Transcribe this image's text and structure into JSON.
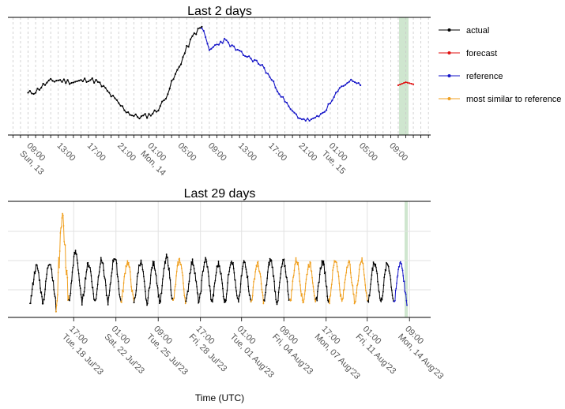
{
  "chart_data": [
    {
      "type": "line",
      "title": "Last 2 days",
      "x_tick_labels": [
        "09:00|Sun, 13",
        "13:00",
        "17:00",
        "21:00",
        "01:00|Mon, 14",
        "05:00",
        "09:00",
        "13:00",
        "17:00",
        "21:00",
        "01:00|Tue, 15",
        "05:00",
        "09:00"
      ],
      "legend": [
        "actual",
        "forecast",
        "reference",
        "most similar to reference"
      ],
      "legend_position": "right",
      "grid": "vertical dashed, hourly",
      "highlight": "shaded band at the latest hour (09:00 Tue, 15)",
      "series": [
        {
          "name": "actual",
          "color": "#000000",
          "values_by_hour": [
            0.32,
            0.34,
            0.4,
            0.44,
            0.45,
            0.44,
            0.43,
            0.44,
            0.46,
            0.44,
            0.38,
            0.3,
            0.22,
            0.15,
            0.1,
            0.09,
            0.11,
            0.15,
            0.25,
            0.42,
            0.58,
            0.76,
            0.9,
            0.97
          ]
        },
        {
          "name": "reference",
          "color": "#1515c8",
          "values_by_hour": [
            0.97,
            0.74,
            0.8,
            0.84,
            0.78,
            0.72,
            0.68,
            0.64,
            0.59,
            0.48,
            0.36,
            0.24,
            0.14,
            0.08,
            0.06,
            0.07,
            0.13,
            0.22,
            0.34,
            0.42,
            0.45,
            0.4
          ]
        },
        {
          "name": "forecast",
          "color": "#e01010",
          "values_by_hour": [
            0.4,
            0.43,
            0.41
          ]
        }
      ]
    },
    {
      "type": "line",
      "title": "Last 29 days",
      "x_tick_labels": [
        "17:00|Tue, 18 Jul'23",
        "01:00|Sat, 22 Jul'23",
        "09:00|Tue, 25 Jul'23",
        "17:00|Fri, 28 Jul'23",
        "01:00|Tue, 01 Aug'23",
        "09:00|Fri, 04 Aug'23",
        "17:00|Mon, 07 Aug'23",
        "01:00|Fri, 11 Aug'23",
        "09:00|Mon, 14 Aug'23"
      ],
      "xlabel": "Time (UTC)",
      "grid": "vertical and horizontal",
      "notes": "daily cycles of series 'actual' (black); segments 'most similar to reference' (orange); final day 'reference' (blue)",
      "daily_peaks": [
        0.45,
        0.5,
        0.88,
        0.6,
        0.48,
        0.52,
        0.55,
        0.5,
        0.5,
        0.48,
        0.55,
        0.52,
        0.5,
        0.52,
        0.48,
        0.52,
        0.5,
        0.48,
        0.52,
        0.5,
        0.52,
        0.48,
        0.5,
        0.52,
        0.5,
        0.52,
        0.5,
        0.48,
        0.5
      ],
      "orange_days": [
        2,
        7,
        11,
        17,
        20,
        21,
        23,
        24,
        25
      ]
    }
  ],
  "legend": {
    "actual": "actual",
    "forecast": "forecast",
    "reference": "reference",
    "similar": "most similar to reference"
  },
  "titles": {
    "top": "Last 2 days",
    "bottom": "Last 29 days"
  },
  "xlabel": "Time (UTC)",
  "colors": {
    "actual": "#000000",
    "forecast": "#e01010",
    "reference": "#1515c8",
    "similar": "#f0a020",
    "highlight": "#cfe6cf"
  }
}
